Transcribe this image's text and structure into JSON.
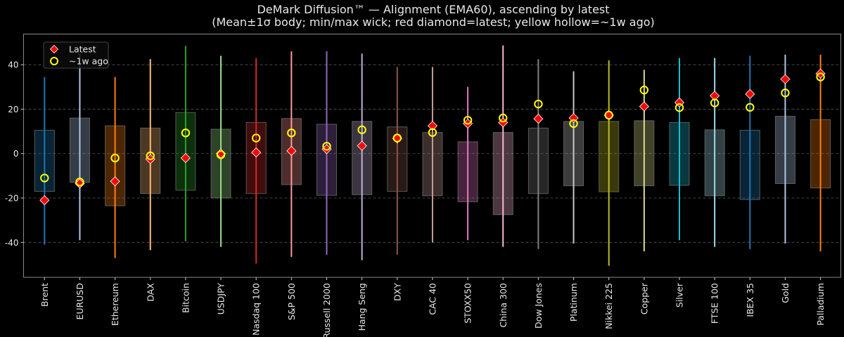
{
  "chart_data": {
    "type": "box",
    "title": "DeMark Diffusion™ — Alignment (EMA60), ascending by latest",
    "subtitle": "(Mean±1σ body; min/max wick; red diamond=latest; yellow hollow=~1w ago)",
    "xlabel": "",
    "ylabel": "",
    "ylim": [
      -55.7,
      53.8
    ],
    "yticks": [
      -40,
      -20,
      0,
      20,
      40
    ],
    "grid": "y-dashed",
    "legend": {
      "placement": "top-left",
      "entries": [
        "Latest",
        "~1w ago"
      ]
    },
    "marker_colors": {
      "latest": "#ff0000",
      "week_ago": "#ffff00"
    },
    "categories": [
      "Brent",
      "EURUSD",
      "Ethereum",
      "DAX",
      "Bitcoin",
      "USDJPY",
      "Nasdaq 100",
      "S&P 500",
      "Russell 2000",
      "Hang Seng",
      "DXY",
      "CAC 40",
      "STOXX50",
      "China 300",
      "Dow Jones",
      "Platinum",
      "Nikkei 225",
      "Copper",
      "Silver",
      "FTSE 100",
      "IBEX 35",
      "Gold",
      "Palladium"
    ],
    "colors": [
      "#1f77b4",
      "#aec7e8",
      "#ff7f0e",
      "#ffbb78",
      "#2ca02c",
      "#98df8a",
      "#d62728",
      "#ff9896",
      "#9467bd",
      "#c5b0d5",
      "#8c564b",
      "#c49c94",
      "#e377c2",
      "#f7b6d2",
      "#7f7f7f",
      "#c7c7c7",
      "#bcbd22",
      "#dbdb8d",
      "#17becf",
      "#9edae5",
      "#1f77b4",
      "#aec7e8",
      "#ff7f0e"
    ],
    "body_high": [
      10.5,
      16,
      12.5,
      11.5,
      18.5,
      11,
      14,
      15.8,
      13.2,
      14.5,
      12,
      9.5,
      5.3,
      9.5,
      11.5,
      14.5,
      14.5,
      14.8,
      14,
      10.7,
      10.5,
      16.8,
      15.3
    ],
    "body_low": [
      -17,
      -13,
      -23.5,
      -18,
      -16.5,
      -20,
      -18,
      -14,
      -18.8,
      -18.5,
      -17,
      -19,
      -21.7,
      -27.5,
      -18,
      -14.5,
      -17.2,
      -14.5,
      -14.3,
      -19,
      -20.7,
      -13.5,
      -15.5
    ],
    "max": [
      34.5,
      45,
      34.5,
      42.5,
      48.5,
      44,
      43,
      46,
      46,
      45,
      39,
      39,
      30,
      48.7,
      42.5,
      37,
      42,
      37.7,
      43,
      43,
      44,
      44.5,
      44.5
    ],
    "min": [
      -41,
      -39,
      -47,
      -43.5,
      -39.5,
      -42,
      -49.5,
      -46.5,
      -45.5,
      -48,
      -45.5,
      -40,
      -39,
      -42,
      -43,
      -40.5,
      -50.5,
      -44,
      -39,
      -42,
      -43,
      -40.5,
      -44
    ],
    "latest": [
      -21,
      -13.5,
      -12.5,
      -2.5,
      -2,
      0,
      0.5,
      1.2,
      2,
      3.5,
      6.8,
      12.5,
      13.5,
      14,
      15.7,
      16,
      17.3,
      21.2,
      23,
      26,
      26.8,
      33.5,
      36
    ],
    "week_ago": [
      -11,
      -12.8,
      -2,
      -1,
      9.3,
      -0.5,
      7,
      9.3,
      3.3,
      10.7,
      7,
      9.5,
      15,
      16,
      22.3,
      13.5,
      17.3,
      28.6,
      20.7,
      22.8,
      20.8,
      27.3,
      34.5
    ]
  }
}
